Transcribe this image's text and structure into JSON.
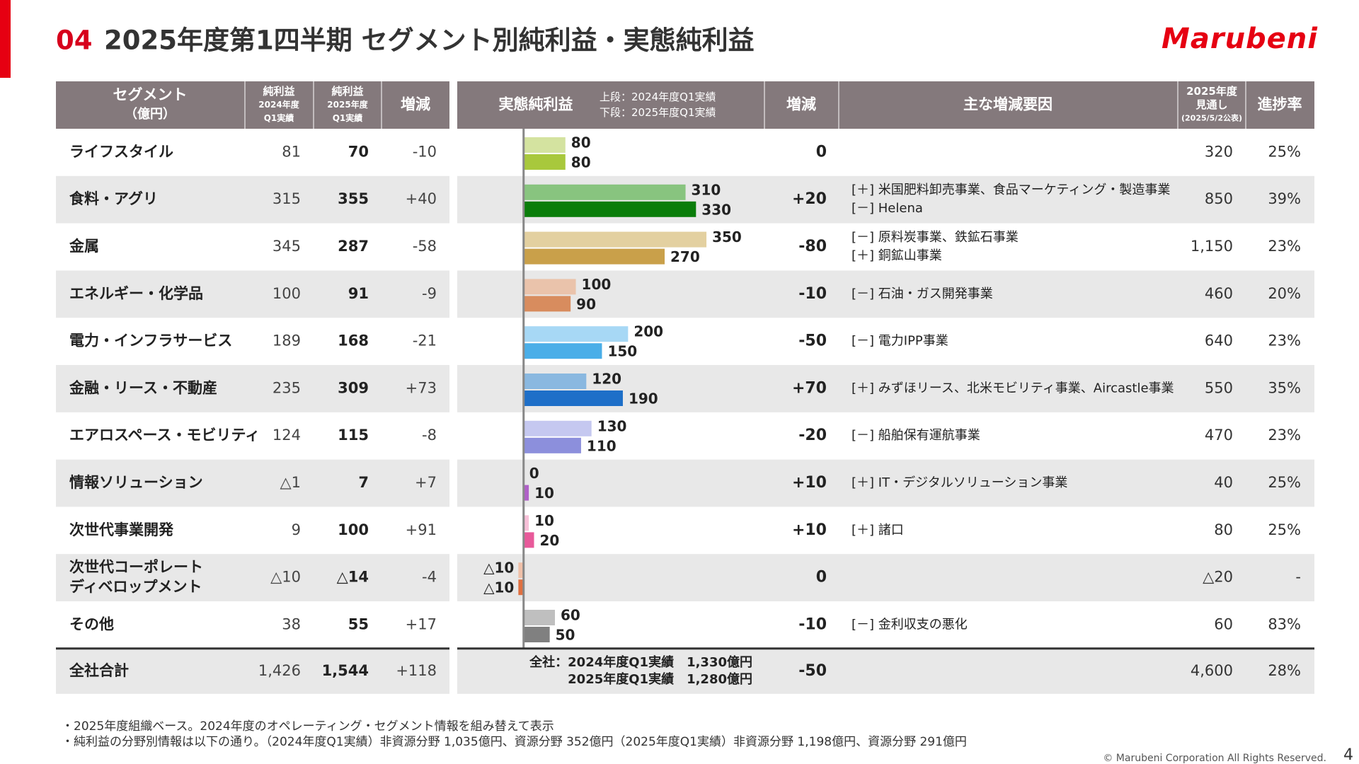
{
  "header": {
    "number": "04",
    "title": "2025年度第1四半期 セグメント別純利益・実態純利益",
    "logo": "Marubeni"
  },
  "left_headers": [
    [
      "セグメント",
      "（億円）"
    ],
    [
      "純利益",
      "2024年度",
      "Q1実績"
    ],
    [
      "純利益",
      "2025年度",
      "Q1実績"
    ],
    [
      "増減"
    ]
  ],
  "right_headers": {
    "core": "実態純利益",
    "core_notes": [
      "上段：2024年度Q1実績",
      "下段：2025年度Q1実績"
    ],
    "change": "増減",
    "factors": "主な増減要因",
    "forecast": [
      "2025年度",
      "見通し",
      "(2025/5/2公表)"
    ],
    "progress": "進捗率"
  },
  "core_xlim": [
    -127,
    461
  ],
  "rows": [
    {
      "segment": [
        "ライフスタイル"
      ],
      "ni_2024": "81",
      "ni_2025": "70",
      "ni_change": "-10",
      "core": [
        80,
        80
      ],
      "colors": [
        "#d4e3a0",
        "#a8c83c"
      ],
      "core_change": "0",
      "factors": [],
      "forecast": "320",
      "progress": "25%"
    },
    {
      "segment": [
        "食料・アグリ"
      ],
      "ni_2024": "315",
      "ni_2025": "355",
      "ni_change": "+40",
      "core": [
        310,
        330
      ],
      "colors": [
        "#88c47f",
        "#0a7d0a"
      ],
      "core_change": "+20",
      "factors": [
        "[＋] 米国肥料卸売事業、食品マーケティング・製造事業",
        "[－] Helena"
      ],
      "forecast": "850",
      "progress": "39%"
    },
    {
      "segment": [
        "金属"
      ],
      "ni_2024": "345",
      "ni_2025": "287",
      "ni_change": "-58",
      "core": [
        350,
        270
      ],
      "colors": [
        "#e3d0a0",
        "#c9a04a"
      ],
      "core_change": "-80",
      "factors": [
        "[－] 原料炭事業、鉄鉱石事業",
        "[＋] 銅鉱山事業"
      ],
      "forecast": "1,150",
      "progress": "23%"
    },
    {
      "segment": [
        "エネルギー・化学品"
      ],
      "ni_2024": "100",
      "ni_2025": "91",
      "ni_change": "-9",
      "core": [
        100,
        90
      ],
      "colors": [
        "#eac3ab",
        "#d88c5e"
      ],
      "core_change": "-10",
      "factors": [
        "[－] 石油・ガス開発事業"
      ],
      "forecast": "460",
      "progress": "20%"
    },
    {
      "segment": [
        "電力・インフラサービス"
      ],
      "ni_2024": "189",
      "ni_2025": "168",
      "ni_change": "-21",
      "core": [
        200,
        150
      ],
      "colors": [
        "#a7d8f5",
        "#4aaee8"
      ],
      "core_change": "-50",
      "factors": [
        "[－] 電力IPP事業"
      ],
      "forecast": "640",
      "progress": "23%"
    },
    {
      "segment": [
        "金融・リース・不動産"
      ],
      "ni_2024": "235",
      "ni_2025": "309",
      "ni_change": "+73",
      "core": [
        120,
        190
      ],
      "colors": [
        "#8ab8e0",
        "#1e6fc8"
      ],
      "core_change": "+70",
      "factors": [
        "[＋] みずほリース、北米モビリティ事業、Aircastle事業"
      ],
      "forecast": "550",
      "progress": "35%"
    },
    {
      "segment": [
        "エアロスペース・モビリティ"
      ],
      "ni_2024": "124",
      "ni_2025": "115",
      "ni_change": "-8",
      "core": [
        130,
        110
      ],
      "colors": [
        "#c5c8f0",
        "#8c8fdc"
      ],
      "core_change": "-20",
      "factors": [
        "[－] 船舶保有運航事業"
      ],
      "forecast": "470",
      "progress": "23%"
    },
    {
      "segment": [
        "情報ソリューション"
      ],
      "ni_2024": "△1",
      "ni_2025": "7",
      "ni_change": "+7",
      "core": [
        0,
        10
      ],
      "colors": [
        "#e0b8e8",
        "#b060c8"
      ],
      "core_change": "+10",
      "factors": [
        "[＋] IT・デジタルソリューション事業"
      ],
      "forecast": "40",
      "progress": "25%"
    },
    {
      "segment": [
        "次世代事業開発"
      ],
      "ni_2024": "9",
      "ni_2025": "100",
      "ni_change": "+91",
      "core": [
        10,
        20
      ],
      "colors": [
        "#f7c0d8",
        "#e85a9a"
      ],
      "core_change": "+10",
      "factors": [
        "[＋] 諸口"
      ],
      "forecast": "80",
      "progress": "25%"
    },
    {
      "segment": [
        "次世代コーポレート",
        "ディベロップメント"
      ],
      "ni_2024": "△10",
      "ni_2025": "△14",
      "ni_change": "-4",
      "core": [
        -10,
        -10
      ],
      "core_labels": [
        "△10",
        "△10"
      ],
      "colors": [
        "#f0c0a8",
        "#e07040"
      ],
      "core_change": "0",
      "factors": [],
      "forecast": "△20",
      "progress": "-"
    },
    {
      "segment": [
        "その他"
      ],
      "ni_2024": "38",
      "ni_2025": "55",
      "ni_change": "+17",
      "core": [
        60,
        50
      ],
      "colors": [
        "#bfbfbf",
        "#808080"
      ],
      "core_change": "-10",
      "factors": [
        "[－] 金利収支の悪化"
      ],
      "forecast": "60",
      "progress": "83%"
    }
  ],
  "total": {
    "segment": "全社合計",
    "ni_2024": "1,426",
    "ni_2025": "1,544",
    "ni_change": "+118",
    "core_text": [
      "全社：2024年度Q1実績　1,330億円",
      "2025年度Q1実績　1,280億円"
    ],
    "core_change": "-50",
    "forecast": "4,600",
    "progress": "28%"
  },
  "footnotes": [
    "・2025年度組織ベース。2024年度のオペレーティング・セグメント情報を組み替えて表示",
    "・純利益の分野別情報は以下の通り。（2024年度Q1実績）非資源分野 1,035億円、資源分野 352億円（2025年度Q1実績）非資源分野 1,198億円、資源分野 291億円"
  ],
  "copyright": "© Marubeni Corporation All Rights Reserved.",
  "page_number": "4"
}
